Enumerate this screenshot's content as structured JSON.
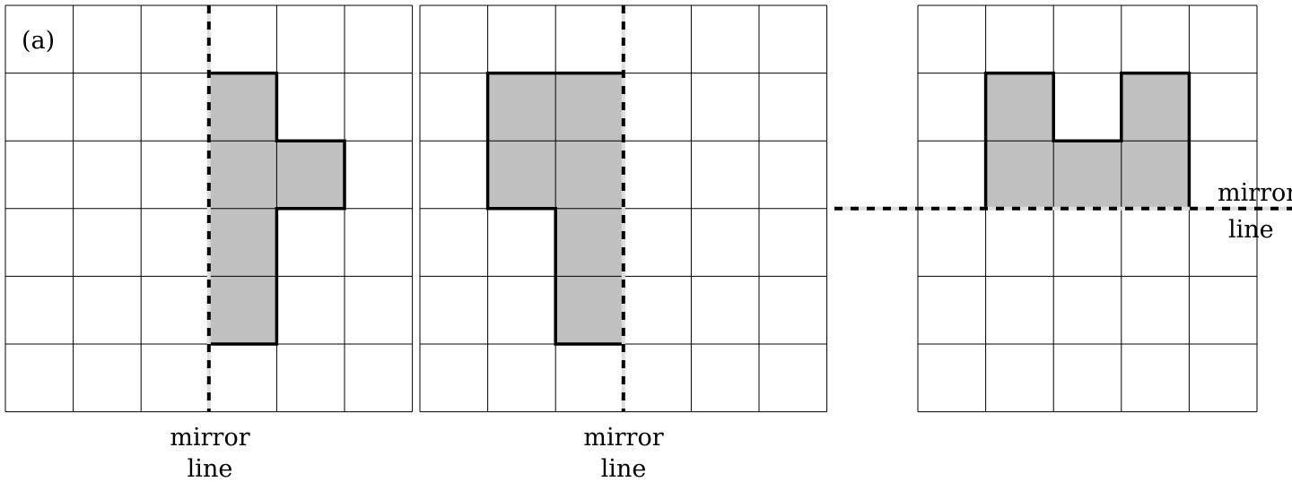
{
  "panel_label": "(a)",
  "mirror_label": {
    "line1": "mirror",
    "line2": "line"
  },
  "colors": {
    "grid": "#000000",
    "fill": "#c0c0c0",
    "outline": "#000000",
    "mirror": "#000000"
  },
  "grids": [
    {
      "name": "grid-left",
      "rows": 6,
      "cols": 6,
      "shaded_cells": [
        [
          1,
          3
        ],
        [
          2,
          3
        ],
        [
          2,
          4
        ],
        [
          3,
          3
        ],
        [
          4,
          3
        ]
      ],
      "mirror": {
        "orientation": "vertical",
        "grid_line": 3
      },
      "show_mirror_label": true
    },
    {
      "name": "grid-middle",
      "rows": 6,
      "cols": 6,
      "shaded_cells": [
        [
          1,
          1
        ],
        [
          1,
          2
        ],
        [
          2,
          1
        ],
        [
          2,
          2
        ],
        [
          3,
          2
        ],
        [
          4,
          2
        ]
      ],
      "mirror": {
        "orientation": "vertical",
        "grid_line": 3
      },
      "show_mirror_label": true
    },
    {
      "name": "grid-right",
      "rows": 6,
      "cols": 5,
      "shaded_cells": [
        [
          1,
          1
        ],
        [
          1,
          3
        ],
        [
          2,
          1
        ],
        [
          2,
          2
        ],
        [
          2,
          3
        ]
      ],
      "mirror": {
        "orientation": "horizontal",
        "grid_line": 3
      },
      "show_mirror_label": true
    }
  ]
}
